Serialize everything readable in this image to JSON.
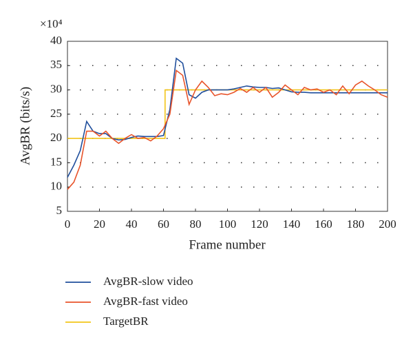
{
  "chart_data": {
    "type": "line",
    "x_label": "Frame number",
    "y_label": "AvgBR (bits/s)",
    "y_scale_label": "×10⁴",
    "xlim": [
      0,
      200
    ],
    "ylim": [
      5,
      40
    ],
    "xticks": [
      0,
      20,
      40,
      60,
      80,
      100,
      120,
      140,
      160,
      180,
      200
    ],
    "yticks": [
      5,
      10,
      15,
      20,
      25,
      30,
      35,
      40
    ],
    "grid": true,
    "series": [
      {
        "name": "AvgBR-slow video",
        "color": "#1f4e9c",
        "x": [
          0,
          4,
          8,
          12,
          16,
          20,
          24,
          28,
          32,
          36,
          40,
          44,
          48,
          52,
          56,
          60,
          64,
          68,
          72,
          76,
          80,
          84,
          88,
          92,
          96,
          100,
          104,
          108,
          112,
          116,
          120,
          124,
          128,
          132,
          136,
          140,
          144,
          148,
          152,
          156,
          160,
          164,
          168,
          172,
          176,
          180,
          184,
          188,
          192,
          196,
          200
        ],
        "values": [
          12,
          14.5,
          17.5,
          23.5,
          21.5,
          21,
          21,
          20,
          19.7,
          19.8,
          20.2,
          20.5,
          20.4,
          20.4,
          20.4,
          20.6,
          26,
          36.5,
          35.5,
          29,
          28.3,
          29.5,
          30,
          30,
          30,
          30,
          30.2,
          30.5,
          30.8,
          30.6,
          30.5,
          30.5,
          30.3,
          30.4,
          30,
          29.6,
          29.5,
          29.5,
          29.4,
          29.4,
          29.4,
          29.4,
          29.4,
          29.4,
          29.4,
          29.4,
          29.4,
          29.4,
          29.4,
          29.4,
          29.4
        ]
      },
      {
        "name": "AvgBR-fast video",
        "color": "#e8532a",
        "x": [
          0,
          4,
          8,
          12,
          16,
          20,
          24,
          28,
          32,
          36,
          40,
          44,
          48,
          52,
          56,
          60,
          64,
          68,
          72,
          76,
          80,
          84,
          88,
          92,
          96,
          100,
          104,
          108,
          112,
          116,
          120,
          124,
          128,
          132,
          136,
          140,
          144,
          148,
          152,
          156,
          160,
          164,
          168,
          172,
          176,
          180,
          184,
          188,
          192,
          196,
          200
        ],
        "values": [
          9.5,
          11,
          14.5,
          21.5,
          21.5,
          20.5,
          21.5,
          20,
          19,
          20,
          20.8,
          20,
          20.2,
          19.5,
          20.5,
          22,
          25,
          34,
          33,
          27,
          30,
          31.8,
          30.5,
          28.8,
          29.2,
          29,
          29.5,
          30.3,
          29.5,
          30.5,
          29.5,
          30.5,
          28.5,
          29.5,
          31,
          30,
          29,
          30.5,
          30,
          30.2,
          29.5,
          30,
          29,
          30.8,
          29.2,
          31,
          31.8,
          30.8,
          30,
          29,
          28.5
        ]
      },
      {
        "name": "TargetBR",
        "color": "#f2c418",
        "x": [
          0,
          61,
          61,
          200
        ],
        "values": [
          20,
          20,
          30,
          30
        ]
      }
    ]
  }
}
